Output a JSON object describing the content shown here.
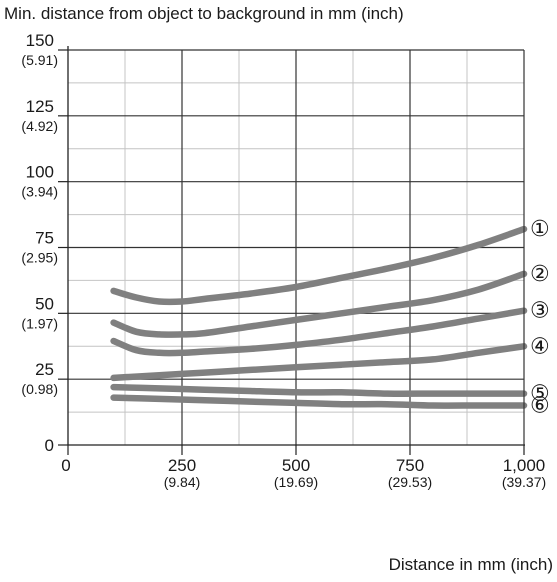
{
  "chart_data": {
    "type": "line",
    "title": "Min. distance from object to background in mm (inch)",
    "xlabel": "Distance in mm (inch)",
    "ylabel": "",
    "xlim": [
      0,
      1000
    ],
    "ylim": [
      0,
      150
    ],
    "grid": true,
    "x_ticks": [
      {
        "value": 0,
        "label": "0",
        "sub": ""
      },
      {
        "value": 250,
        "label": "250",
        "sub": "(9.84)"
      },
      {
        "value": 500,
        "label": "500",
        "sub": "(19.69)"
      },
      {
        "value": 750,
        "label": "750",
        "sub": "(29.53)"
      },
      {
        "value": 1000,
        "label": "1,000",
        "sub": "(39.37)"
      }
    ],
    "y_ticks": [
      {
        "value": 0,
        "label": "0",
        "sub": ""
      },
      {
        "value": 25,
        "label": "25",
        "sub": "(0.98)"
      },
      {
        "value": 50,
        "label": "50",
        "sub": "(1.97)"
      },
      {
        "value": 75,
        "label": "75",
        "sub": "(2.95)"
      },
      {
        "value": 100,
        "label": "100",
        "sub": "(3.94)"
      },
      {
        "value": 125,
        "label": "125",
        "sub": "(4.92)"
      },
      {
        "value": 150,
        "label": "150",
        "sub": "(5.91)"
      }
    ],
    "line_color": "#808080",
    "series": [
      {
        "marker": "①",
        "x": [
          100,
          150,
          200,
          250,
          300,
          400,
          500,
          600,
          700,
          800,
          900,
          1000
        ],
        "y": [
          58.5,
          56,
          54.5,
          54.5,
          55.5,
          57.5,
          60,
          63.5,
          67,
          71,
          76,
          82
        ]
      },
      {
        "marker": "②",
        "x": [
          100,
          150,
          200,
          250,
          300,
          400,
          500,
          600,
          700,
          800,
          900,
          1000
        ],
        "y": [
          46.5,
          43,
          42,
          42,
          42.5,
          45,
          47.5,
          50,
          52.5,
          55,
          59,
          65
        ]
      },
      {
        "marker": "③",
        "x": [
          100,
          150,
          200,
          250,
          300,
          400,
          500,
          600,
          700,
          800,
          900,
          1000
        ],
        "y": [
          39.5,
          36,
          35,
          35,
          35.5,
          36.5,
          38,
          40,
          42.5,
          45,
          48,
          51
        ]
      },
      {
        "marker": "④",
        "x": [
          100,
          200,
          300,
          400,
          500,
          600,
          700,
          800,
          900,
          1000
        ],
        "y": [
          25.5,
          26.5,
          27.5,
          28.5,
          29.5,
          30.5,
          31.5,
          32.5,
          35,
          37.5
        ]
      },
      {
        "marker": "⑤",
        "x": [
          100,
          200,
          300,
          400,
          500,
          600,
          700,
          800,
          900,
          1000
        ],
        "y": [
          22,
          21.5,
          21,
          20.5,
          20,
          20,
          19.5,
          19.5,
          19.5,
          19.5
        ]
      },
      {
        "marker": "⑥",
        "x": [
          100,
          200,
          300,
          400,
          500,
          600,
          700,
          800,
          900,
          1000
        ],
        "y": [
          18,
          17.5,
          17,
          16.5,
          16,
          15.5,
          15.5,
          15,
          15,
          15
        ]
      }
    ]
  }
}
